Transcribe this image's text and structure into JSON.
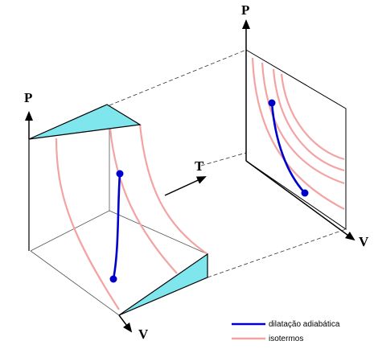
{
  "axes": {
    "left_p": "P",
    "left_v": "V",
    "t": "T",
    "right_p": "P",
    "right_v": "V"
  },
  "legend": {
    "adiabatic": "dilatação adiabática",
    "isotherm": "isotermos"
  },
  "colors": {
    "adiabatic": "#0000cc",
    "isotherm": "#f4a3a3",
    "face": "#7fe6ee",
    "frame": "#000000",
    "guide": "#444444"
  }
}
